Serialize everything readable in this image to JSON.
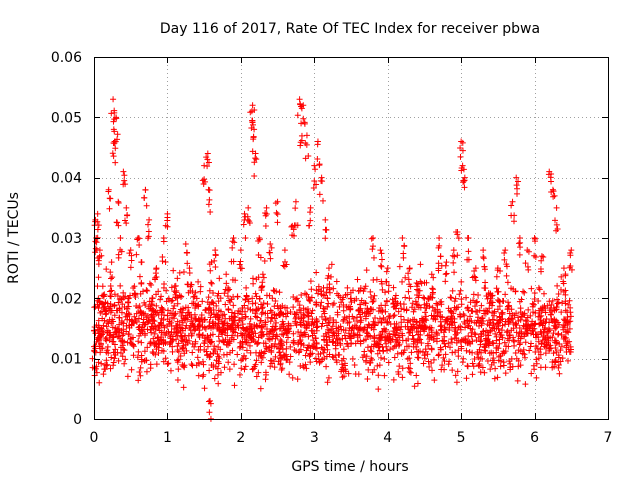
{
  "chart_data": {
    "type": "scatter",
    "title": "Day 116 of 2017, Rate Of TEC Index for receiver pbwa",
    "xlabel": "GPS time / hours",
    "ylabel": "ROTI / TECUs",
    "xlim": [
      0,
      7
    ],
    "ylim": [
      0,
      0.06
    ],
    "xticks": [
      0,
      1,
      2,
      3,
      4,
      5,
      6,
      7
    ],
    "xtick_labels": [
      "0",
      "1",
      "2",
      "3",
      "4",
      "5",
      "6",
      "7"
    ],
    "yticks": [
      0,
      0.01,
      0.02,
      0.03,
      0.04,
      0.05,
      0.06
    ],
    "ytick_labels": [
      "0",
      "0.01",
      "0.02",
      "0.03",
      "0.04",
      "0.05",
      "0.06"
    ],
    "grid": true,
    "marker": "+",
    "color": "#ff0000",
    "series": [
      {
        "name": "ROTI",
        "x": [
          0.0,
          0.02,
          0.03,
          0.05,
          0.06,
          0.08,
          0.1,
          0.12,
          0.15,
          0.2,
          0.24,
          0.26,
          0.27,
          0.28,
          0.3,
          0.33,
          0.36,
          0.4,
          0.44,
          0.5,
          0.55,
          0.6,
          0.65,
          0.7,
          0.75,
          0.8,
          0.85,
          0.9,
          0.95,
          1.0,
          1.1,
          1.2,
          1.25,
          1.3,
          1.4,
          1.5,
          1.55,
          1.56,
          1.58,
          1.6,
          1.65,
          1.7,
          1.8,
          1.9,
          2.0,
          2.05,
          2.1,
          2.15,
          2.16,
          2.18,
          2.2,
          2.25,
          2.3,
          2.35,
          2.4,
          2.5,
          2.6,
          2.7,
          2.75,
          2.8,
          2.82,
          2.85,
          2.9,
          2.95,
          3.0,
          3.05,
          3.1,
          3.15,
          3.2,
          3.3,
          3.4,
          3.5,
          3.6,
          3.7,
          3.8,
          3.9,
          4.0,
          4.1,
          4.2,
          4.3,
          4.4,
          4.5,
          4.6,
          4.7,
          4.8,
          4.9,
          4.95,
          5.0,
          5.02,
          5.05,
          5.1,
          5.2,
          5.3,
          5.4,
          5.5,
          5.6,
          5.7,
          5.75,
          5.8,
          5.9,
          6.0,
          6.1,
          6.2,
          6.25,
          6.3,
          6.4,
          6.5
        ],
        "y": [
          0.012,
          0.033,
          0.03,
          0.034,
          0.02,
          0.028,
          0.015,
          0.022,
          0.009,
          0.038,
          0.026,
          0.053,
          0.048,
          0.046,
          0.05,
          0.036,
          0.03,
          0.041,
          0.035,
          0.028,
          0.022,
          0.03,
          0.026,
          0.038,
          0.033,
          0.02,
          0.025,
          0.018,
          0.03,
          0.034,
          0.022,
          0.015,
          0.029,
          0.025,
          0.02,
          0.042,
          0.044,
          0.038,
          0.003,
          0.026,
          0.028,
          0.018,
          0.024,
          0.03,
          0.028,
          0.034,
          0.035,
          0.051,
          0.052,
          0.048,
          0.044,
          0.03,
          0.024,
          0.035,
          0.029,
          0.036,
          0.028,
          0.032,
          0.036,
          0.053,
          0.049,
          0.052,
          0.047,
          0.035,
          0.042,
          0.046,
          0.04,
          0.033,
          0.025,
          0.015,
          0.01,
          0.02,
          0.018,
          0.022,
          0.03,
          0.028,
          0.025,
          0.02,
          0.03,
          0.025,
          0.022,
          0.02,
          0.024,
          0.03,
          0.026,
          0.028,
          0.031,
          0.046,
          0.042,
          0.04,
          0.03,
          0.025,
          0.028,
          0.02,
          0.025,
          0.028,
          0.036,
          0.04,
          0.03,
          0.028,
          0.03,
          0.027,
          0.041,
          0.038,
          0.035,
          0.025,
          0.028
        ]
      }
    ],
    "background_band": {
      "x_range": [
        0,
        6.5
      ],
      "y_low": 0.005,
      "y_high": 0.025,
      "density": "dense"
    }
  }
}
